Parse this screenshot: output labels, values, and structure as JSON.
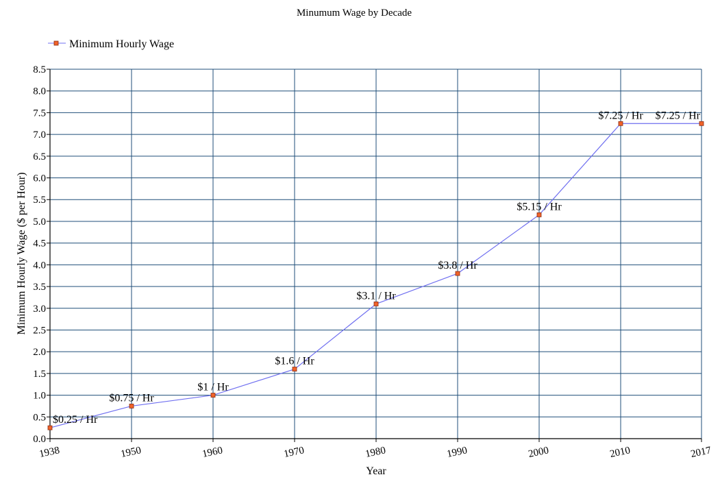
{
  "chart_data": {
    "type": "line",
    "title": "Minumum Wage by Decade",
    "xlabel": "Year",
    "ylabel": "Minimum Hourly Wage ($ per Hour)",
    "x_categories": [
      "1938",
      "1950",
      "1960",
      "1970",
      "1980",
      "1990",
      "2000",
      "2010",
      "2017"
    ],
    "ylim": [
      0,
      8.5
    ],
    "y_ticks": [
      "0.0",
      "0.5",
      "1.0",
      "1.5",
      "2.0",
      "2.5",
      "3.0",
      "3.5",
      "4.0",
      "4.5",
      "5.0",
      "5.5",
      "6.0",
      "6.5",
      "7.0",
      "7.5",
      "8.0",
      "8.5"
    ],
    "grid": true,
    "legend_position": "top-left",
    "series": [
      {
        "name": "Minimum Hourly Wage",
        "color": "#6f6ff0",
        "marker_color": "#f0632a",
        "values": [
          0.25,
          0.75,
          1.0,
          1.6,
          3.1,
          3.8,
          5.15,
          7.25,
          7.25
        ],
        "labels": [
          "$0.25 / Hr",
          "$0.75 / Hr",
          "$1 / Hr",
          "$1.6 / Hr",
          "$3.1 / Hr",
          "$3.8 / Hr",
          "$5.15 / Hr",
          "$7.25 / Hr",
          "$7.25 / Hr"
        ]
      }
    ],
    "grid_color": "#1f4e79"
  }
}
